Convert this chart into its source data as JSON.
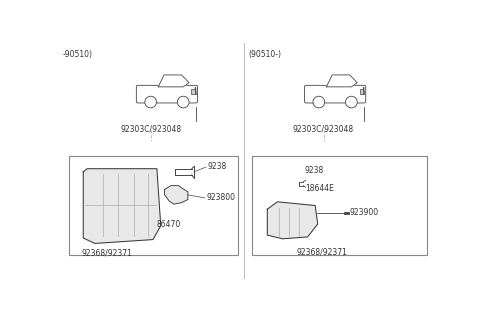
{
  "background_color": "#ffffff",
  "left_label": "-90510)",
  "right_label": "(90510-)",
  "left_car_label": "92303C/923048",
  "right_car_label": "92303C/923048",
  "left_part_labels": {
    "bulb_upper": "9238",
    "bulb_lower": "923800",
    "socket": "86470",
    "assy": "92368/92371"
  },
  "right_part_labels": {
    "bulb_upper": "9238",
    "socket": "18644E",
    "connector": "923900",
    "assy": "92368/92371"
  },
  "text_color": "#333333",
  "line_color": "#bbbbbb",
  "part_line_color": "#444444",
  "box_color": "#333333",
  "lamp_fill": "#e8e8e8",
  "lamp_stroke": "#333333"
}
